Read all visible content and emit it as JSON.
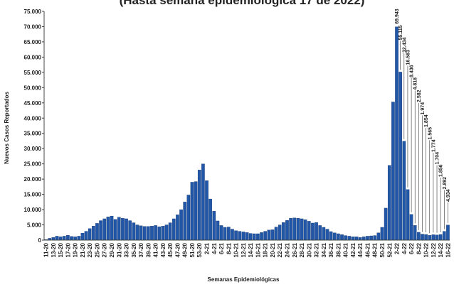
{
  "chart_data": {
    "type": "bar",
    "title": "(Hasta semana epidemiológica 17 de 2022)",
    "xlabel": "Semanas Epidemiológicas",
    "ylabel": "Nuevos Casos Reportados",
    "color": "#2256a6",
    "grid": false,
    "categories": [
      "11-20",
      null,
      "13-20",
      null,
      "15-20",
      null,
      "17-20",
      null,
      "19-20",
      null,
      "21-20",
      null,
      "23-20",
      null,
      "25-20",
      null,
      "27-20",
      null,
      "29-20",
      null,
      "31-20",
      null,
      "33-20",
      null,
      "35-20",
      null,
      "37-20",
      null,
      "39-20",
      null,
      "41-20",
      null,
      "43-20",
      null,
      "45-20",
      null,
      "47-20",
      null,
      "49-20",
      null,
      "51-20",
      null,
      "53-20",
      null,
      "2-21",
      null,
      "4-21",
      null,
      "6-21",
      null,
      "8-21",
      null,
      "10-21",
      null,
      "12-21",
      null,
      "14-21",
      null,
      "16-21",
      null,
      "18-21",
      null,
      "20-21",
      null,
      "22-21",
      null,
      "24-21",
      null,
      "26-21",
      null,
      "28-21",
      null,
      "30-21",
      null,
      "32-21",
      null,
      "34-21",
      null,
      "36-21",
      null,
      "38-21",
      null,
      "40-21",
      null,
      "42-21",
      null,
      "44-21",
      null,
      "46-21",
      null,
      "48-21",
      null,
      "50-21",
      null,
      "52-21",
      null,
      "2-22",
      null,
      "4-22",
      null,
      "6-22",
      null,
      "8-22",
      null,
      "10-22",
      null,
      "12-22",
      null,
      "14-22",
      null,
      "16-22"
    ],
    "values": [
      200,
      600,
      900,
      1300,
      1100,
      1300,
      1600,
      1200,
      1100,
      1300,
      2300,
      2900,
      3800,
      4600,
      5500,
      6400,
      7000,
      7600,
      7900,
      6800,
      7500,
      7200,
      7000,
      6400,
      5700,
      5000,
      4700,
      4500,
      4500,
      4600,
      4800,
      4400,
      4600,
      5000,
      5700,
      7000,
      8300,
      10000,
      12500,
      14800,
      19000,
      19200,
      23000,
      25000,
      19500,
      13500,
      9500,
      6300,
      4800,
      4200,
      4300,
      3600,
      3100,
      2900,
      2700,
      2500,
      2200,
      2100,
      2100,
      2500,
      2900,
      3300,
      3400,
      4300,
      5000,
      5800,
      6500,
      7200,
      7300,
      7200,
      7000,
      6700,
      6200,
      5600,
      5800,
      4800,
      4200,
      3600,
      2800,
      2400,
      2100,
      1800,
      1500,
      1300,
      1100,
      1100,
      900,
      1100,
      1300,
      1400,
      1500,
      2400,
      4200,
      10500,
      24500,
      45300,
      69943,
      55115,
      32434,
      16583,
      8436,
      4818,
      2582,
      1974,
      1854,
      1565,
      1774,
      1704,
      1856,
      2892,
      4934
    ],
    "value_labels": [
      null,
      null,
      null,
      null,
      null,
      null,
      null,
      null,
      null,
      null,
      null,
      null,
      null,
      null,
      null,
      null,
      null,
      null,
      null,
      null,
      null,
      null,
      null,
      null,
      null,
      null,
      null,
      null,
      null,
      null,
      null,
      null,
      null,
      null,
      null,
      null,
      null,
      null,
      null,
      null,
      null,
      null,
      null,
      null,
      null,
      null,
      null,
      null,
      null,
      null,
      null,
      null,
      null,
      null,
      null,
      null,
      null,
      null,
      null,
      null,
      null,
      null,
      null,
      null,
      null,
      null,
      null,
      null,
      null,
      null,
      null,
      null,
      null,
      null,
      null,
      null,
      null,
      null,
      null,
      null,
      null,
      null,
      null,
      null,
      null,
      null,
      null,
      null,
      null,
      null,
      null,
      null,
      null,
      null,
      null,
      null,
      "69.943",
      "55.115",
      "32.434",
      "16.583",
      "8.436",
      "4.818",
      "2.582",
      "1.974",
      "1.854",
      "1.565",
      "1.774",
      "1.704",
      "1.856",
      "2.892",
      "4.934"
    ],
    "ylim": [
      0,
      75000
    ],
    "yticks": [
      0,
      {
        "value": 5000,
        "label": "5.000"
      },
      {
        "value": 10000,
        "label": "10.000"
      },
      {
        "value": 15000,
        "label": "15.000"
      },
      {
        "value": 20000,
        "label": "20.000"
      },
      {
        "value": 25000,
        "label": "25.000"
      },
      {
        "value": 30000,
        "label": "30.000"
      },
      {
        "value": 35000,
        "label": "35.000"
      },
      {
        "value": 40000,
        "label": "40.000"
      },
      {
        "value": 45000,
        "label": "45.000"
      },
      {
        "value": 50000,
        "label": "50.000"
      },
      {
        "value": 55000,
        "label": "55.000"
      },
      {
        "value": 60000,
        "label": "60.000"
      },
      {
        "value": 65000,
        "label": "65.000"
      },
      {
        "value": 70000,
        "label": "70.000"
      },
      {
        "value": 75000,
        "label": "75.000"
      }
    ]
  }
}
